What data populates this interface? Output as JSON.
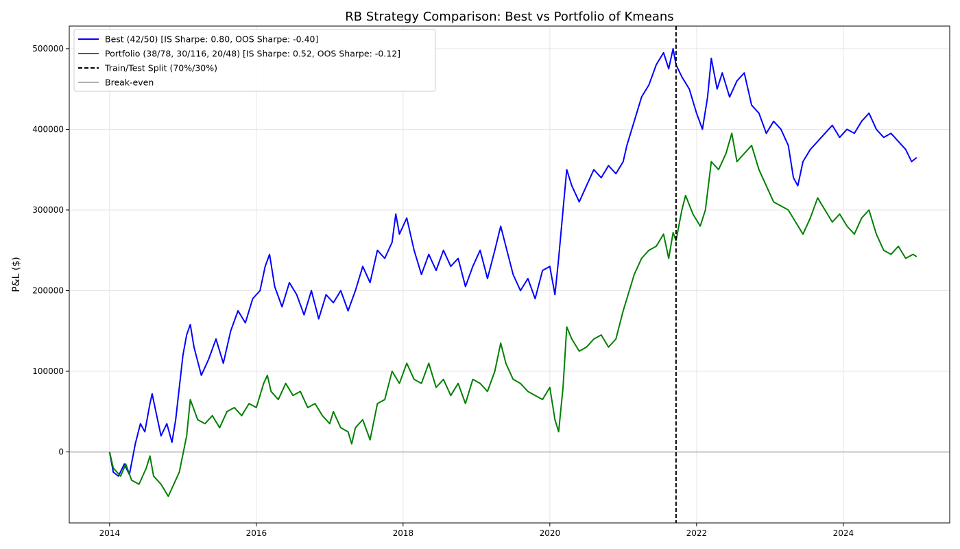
{
  "chart_data": {
    "type": "line",
    "title": "RB Strategy Comparison: Best vs Portfolio of Kmeans",
    "xlabel": "",
    "ylabel": "P&L ($)",
    "xlim": [
      2013.45,
      2025.45
    ],
    "ylim": [
      -88000,
      528000
    ],
    "x_ticks": [
      2014,
      2016,
      2018,
      2020,
      2022,
      2024
    ],
    "y_ticks": [
      0,
      100000,
      200000,
      300000,
      400000,
      500000
    ],
    "grid": true,
    "legend_position": "top-left",
    "split": {
      "x": 2021.72,
      "label": "Train/Test Split (70%/30%)",
      "color": "#000000"
    },
    "breakeven": {
      "y": 0,
      "label": "Break-even",
      "color": "#b0b0b0"
    },
    "series": [
      {
        "name": "Best (42/50) [IS Sharpe: 0.80, OOS Sharpe: -0.40]",
        "color": "#0000ff",
        "points": [
          [
            2014.0,
            0
          ],
          [
            2014.05,
            -25000
          ],
          [
            2014.12,
            -30000
          ],
          [
            2014.2,
            -15000
          ],
          [
            2014.27,
            -28000
          ],
          [
            2014.35,
            10000
          ],
          [
            2014.42,
            35000
          ],
          [
            2014.48,
            25000
          ],
          [
            2014.55,
            60000
          ],
          [
            2014.58,
            72000
          ],
          [
            2014.63,
            50000
          ],
          [
            2014.7,
            20000
          ],
          [
            2014.78,
            35000
          ],
          [
            2014.85,
            12000
          ],
          [
            2014.9,
            40000
          ],
          [
            2015.0,
            120000
          ],
          [
            2015.05,
            145000
          ],
          [
            2015.1,
            158000
          ],
          [
            2015.15,
            130000
          ],
          [
            2015.25,
            95000
          ],
          [
            2015.35,
            115000
          ],
          [
            2015.45,
            140000
          ],
          [
            2015.55,
            110000
          ],
          [
            2015.65,
            150000
          ],
          [
            2015.75,
            175000
          ],
          [
            2015.85,
            160000
          ],
          [
            2015.95,
            190000
          ],
          [
            2016.05,
            200000
          ],
          [
            2016.12,
            230000
          ],
          [
            2016.18,
            245000
          ],
          [
            2016.25,
            205000
          ],
          [
            2016.35,
            180000
          ],
          [
            2016.45,
            210000
          ],
          [
            2016.55,
            195000
          ],
          [
            2016.65,
            170000
          ],
          [
            2016.75,
            200000
          ],
          [
            2016.85,
            165000
          ],
          [
            2016.95,
            195000
          ],
          [
            2017.05,
            185000
          ],
          [
            2017.15,
            200000
          ],
          [
            2017.25,
            175000
          ],
          [
            2017.35,
            200000
          ],
          [
            2017.45,
            230000
          ],
          [
            2017.55,
            210000
          ],
          [
            2017.65,
            250000
          ],
          [
            2017.75,
            240000
          ],
          [
            2017.85,
            260000
          ],
          [
            2017.9,
            295000
          ],
          [
            2017.95,
            270000
          ],
          [
            2018.05,
            290000
          ],
          [
            2018.15,
            250000
          ],
          [
            2018.25,
            220000
          ],
          [
            2018.35,
            245000
          ],
          [
            2018.45,
            225000
          ],
          [
            2018.55,
            250000
          ],
          [
            2018.65,
            230000
          ],
          [
            2018.75,
            240000
          ],
          [
            2018.85,
            205000
          ],
          [
            2018.95,
            230000
          ],
          [
            2019.05,
            250000
          ],
          [
            2019.15,
            215000
          ],
          [
            2019.25,
            250000
          ],
          [
            2019.33,
            280000
          ],
          [
            2019.4,
            255000
          ],
          [
            2019.5,
            220000
          ],
          [
            2019.6,
            200000
          ],
          [
            2019.7,
            215000
          ],
          [
            2019.8,
            190000
          ],
          [
            2019.9,
            225000
          ],
          [
            2020.0,
            230000
          ],
          [
            2020.07,
            195000
          ],
          [
            2020.12,
            240000
          ],
          [
            2020.18,
            300000
          ],
          [
            2020.23,
            350000
          ],
          [
            2020.3,
            330000
          ],
          [
            2020.4,
            310000
          ],
          [
            2020.5,
            330000
          ],
          [
            2020.6,
            350000
          ],
          [
            2020.7,
            340000
          ],
          [
            2020.8,
            355000
          ],
          [
            2020.9,
            345000
          ],
          [
            2021.0,
            360000
          ],
          [
            2021.05,
            380000
          ],
          [
            2021.15,
            410000
          ],
          [
            2021.25,
            440000
          ],
          [
            2021.35,
            455000
          ],
          [
            2021.45,
            480000
          ],
          [
            2021.55,
            495000
          ],
          [
            2021.62,
            475000
          ],
          [
            2021.68,
            500000
          ],
          [
            2021.72,
            480000
          ],
          [
            2021.8,
            465000
          ],
          [
            2021.9,
            450000
          ],
          [
            2022.0,
            420000
          ],
          [
            2022.08,
            400000
          ],
          [
            2022.15,
            440000
          ],
          [
            2022.2,
            488000
          ],
          [
            2022.28,
            450000
          ],
          [
            2022.35,
            470000
          ],
          [
            2022.45,
            440000
          ],
          [
            2022.55,
            460000
          ],
          [
            2022.65,
            470000
          ],
          [
            2022.75,
            430000
          ],
          [
            2022.85,
            420000
          ],
          [
            2022.95,
            395000
          ],
          [
            2023.05,
            410000
          ],
          [
            2023.15,
            400000
          ],
          [
            2023.25,
            380000
          ],
          [
            2023.32,
            340000
          ],
          [
            2023.38,
            330000
          ],
          [
            2023.45,
            360000
          ],
          [
            2023.55,
            375000
          ],
          [
            2023.65,
            385000
          ],
          [
            2023.75,
            395000
          ],
          [
            2023.85,
            405000
          ],
          [
            2023.95,
            390000
          ],
          [
            2024.05,
            400000
          ],
          [
            2024.15,
            395000
          ],
          [
            2024.25,
            410000
          ],
          [
            2024.35,
            420000
          ],
          [
            2024.45,
            400000
          ],
          [
            2024.55,
            390000
          ],
          [
            2024.65,
            395000
          ],
          [
            2024.75,
            385000
          ],
          [
            2024.85,
            375000
          ],
          [
            2024.93,
            360000
          ],
          [
            2025.0,
            365000
          ]
        ]
      },
      {
        "name": "Portfolio (38/78, 30/116, 20/48) [IS Sharpe: 0.52, OOS Sharpe: -0.12]",
        "color": "#008000",
        "points": [
          [
            2014.0,
            0
          ],
          [
            2014.05,
            -20000
          ],
          [
            2014.15,
            -30000
          ],
          [
            2014.22,
            -15000
          ],
          [
            2014.3,
            -35000
          ],
          [
            2014.4,
            -40000
          ],
          [
            2014.5,
            -20000
          ],
          [
            2014.55,
            -5000
          ],
          [
            2014.6,
            -30000
          ],
          [
            2014.7,
            -40000
          ],
          [
            2014.8,
            -55000
          ],
          [
            2014.85,
            -45000
          ],
          [
            2014.95,
            -25000
          ],
          [
            2015.05,
            20000
          ],
          [
            2015.1,
            65000
          ],
          [
            2015.2,
            40000
          ],
          [
            2015.3,
            35000
          ],
          [
            2015.4,
            45000
          ],
          [
            2015.5,
            30000
          ],
          [
            2015.6,
            50000
          ],
          [
            2015.7,
            55000
          ],
          [
            2015.8,
            45000
          ],
          [
            2015.9,
            60000
          ],
          [
            2016.0,
            55000
          ],
          [
            2016.1,
            85000
          ],
          [
            2016.15,
            95000
          ],
          [
            2016.2,
            75000
          ],
          [
            2016.3,
            65000
          ],
          [
            2016.4,
            85000
          ],
          [
            2016.5,
            70000
          ],
          [
            2016.6,
            75000
          ],
          [
            2016.7,
            55000
          ],
          [
            2016.8,
            60000
          ],
          [
            2016.9,
            45000
          ],
          [
            2017.0,
            35000
          ],
          [
            2017.05,
            50000
          ],
          [
            2017.15,
            30000
          ],
          [
            2017.25,
            25000
          ],
          [
            2017.3,
            10000
          ],
          [
            2017.35,
            30000
          ],
          [
            2017.45,
            40000
          ],
          [
            2017.55,
            15000
          ],
          [
            2017.65,
            60000
          ],
          [
            2017.75,
            65000
          ],
          [
            2017.85,
            100000
          ],
          [
            2017.95,
            85000
          ],
          [
            2018.05,
            110000
          ],
          [
            2018.15,
            90000
          ],
          [
            2018.25,
            85000
          ],
          [
            2018.35,
            110000
          ],
          [
            2018.45,
            80000
          ],
          [
            2018.55,
            90000
          ],
          [
            2018.65,
            70000
          ],
          [
            2018.75,
            85000
          ],
          [
            2018.85,
            60000
          ],
          [
            2018.95,
            90000
          ],
          [
            2019.05,
            85000
          ],
          [
            2019.15,
            75000
          ],
          [
            2019.25,
            100000
          ],
          [
            2019.33,
            135000
          ],
          [
            2019.4,
            110000
          ],
          [
            2019.5,
            90000
          ],
          [
            2019.6,
            85000
          ],
          [
            2019.7,
            75000
          ],
          [
            2019.8,
            70000
          ],
          [
            2019.9,
            65000
          ],
          [
            2020.0,
            80000
          ],
          [
            2020.07,
            40000
          ],
          [
            2020.12,
            25000
          ],
          [
            2020.18,
            80000
          ],
          [
            2020.23,
            155000
          ],
          [
            2020.3,
            140000
          ],
          [
            2020.4,
            125000
          ],
          [
            2020.5,
            130000
          ],
          [
            2020.6,
            140000
          ],
          [
            2020.7,
            145000
          ],
          [
            2020.8,
            130000
          ],
          [
            2020.9,
            140000
          ],
          [
            2021.0,
            175000
          ],
          [
            2021.05,
            190000
          ],
          [
            2021.15,
            220000
          ],
          [
            2021.25,
            240000
          ],
          [
            2021.35,
            250000
          ],
          [
            2021.45,
            255000
          ],
          [
            2021.55,
            270000
          ],
          [
            2021.62,
            240000
          ],
          [
            2021.68,
            272000
          ],
          [
            2021.72,
            262000
          ],
          [
            2021.8,
            300000
          ],
          [
            2021.85,
            318000
          ],
          [
            2021.95,
            295000
          ],
          [
            2022.05,
            280000
          ],
          [
            2022.12,
            300000
          ],
          [
            2022.2,
            360000
          ],
          [
            2022.3,
            350000
          ],
          [
            2022.4,
            370000
          ],
          [
            2022.48,
            395000
          ],
          [
            2022.55,
            360000
          ],
          [
            2022.65,
            370000
          ],
          [
            2022.75,
            380000
          ],
          [
            2022.85,
            350000
          ],
          [
            2022.95,
            330000
          ],
          [
            2023.05,
            310000
          ],
          [
            2023.15,
            305000
          ],
          [
            2023.25,
            300000
          ],
          [
            2023.35,
            285000
          ],
          [
            2023.45,
            270000
          ],
          [
            2023.55,
            290000
          ],
          [
            2023.65,
            315000
          ],
          [
            2023.75,
            300000
          ],
          [
            2023.85,
            285000
          ],
          [
            2023.95,
            295000
          ],
          [
            2024.05,
            280000
          ],
          [
            2024.15,
            270000
          ],
          [
            2024.25,
            290000
          ],
          [
            2024.35,
            300000
          ],
          [
            2024.45,
            270000
          ],
          [
            2024.55,
            250000
          ],
          [
            2024.65,
            245000
          ],
          [
            2024.75,
            255000
          ],
          [
            2024.85,
            240000
          ],
          [
            2024.95,
            245000
          ],
          [
            2025.0,
            242000
          ]
        ]
      }
    ]
  }
}
